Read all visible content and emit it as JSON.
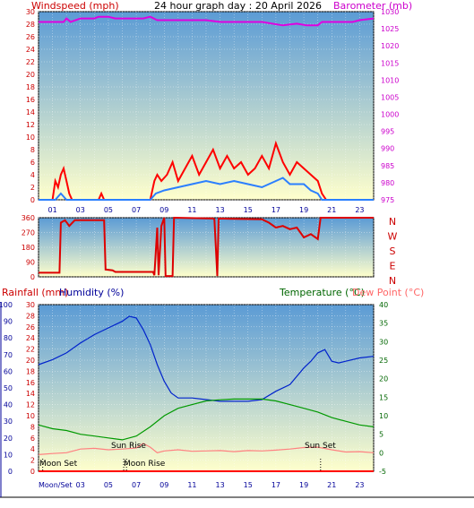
{
  "header": {
    "title": "24 hour graph day : 20 April 2026",
    "left_label": "Windspeed (mph)",
    "right_label": "Barometer (mb)"
  },
  "labels": {
    "rainfall": "Rainfall (mm)",
    "humidity": "Humidity (%)",
    "temperature": "Temperature (°C)",
    "dewpoint": "Dew Point (°C)",
    "sun_rise": "Sun Rise",
    "sun_set": "Sun Set",
    "moon_set": "Moon Set",
    "moon_rise": "Moon Rise",
    "moon_set_axis": "Moon/Set"
  },
  "colors": {
    "wind_axis": "#cc0000",
    "baro_axis": "#cc00cc",
    "baro_line": "#e000e0",
    "gust_line": "#ff0000",
    "wind_line": "#2b7fff",
    "dir_line": "#dd0000",
    "humidity_axis": "#000099",
    "humidity_line": "#0022cc",
    "temp_axis": "#006600",
    "temp_line": "#009900",
    "dew_axis": "#ff6666",
    "dew_line": "#ff8080",
    "rain_axis": "#cc0000",
    "plot_top": "#5b9bd5",
    "plot_bottom": "#ffffcc"
  },
  "chart_data": [
    {
      "type": "line",
      "name": "wind-barometer",
      "x_ticks": [
        "01",
        "03",
        "05",
        "07",
        "09",
        "11",
        "13",
        "15",
        "17",
        "19",
        "21",
        "23"
      ],
      "y_left_ticks": [
        0,
        2,
        4,
        6,
        8,
        10,
        12,
        14,
        16,
        18,
        20,
        22,
        24,
        26,
        28,
        30
      ],
      "y_right_ticks": [
        975,
        980,
        985,
        990,
        995,
        1000,
        1005,
        1010,
        1015,
        1020,
        1025,
        1030
      ],
      "ylim_left": [
        0,
        30
      ],
      "ylim_right": [
        975,
        1030
      ],
      "series": [
        {
          "key": "barometer",
          "points": [
            [
              0,
              1027
            ],
            [
              1.8,
              1027
            ],
            [
              2,
              1028
            ],
            [
              2.3,
              1027
            ],
            [
              3,
              1028
            ],
            [
              4,
              1028
            ],
            [
              4.3,
              1028.5
            ],
            [
              5,
              1028.5
            ],
            [
              5.5,
              1028
            ],
            [
              7.5,
              1028
            ],
            [
              8,
              1028.5
            ],
            [
              8.5,
              1027.5
            ],
            [
              10,
              1027.5
            ],
            [
              12,
              1027.5
            ],
            [
              13,
              1027
            ],
            [
              16,
              1027
            ],
            [
              17.5,
              1026
            ],
            [
              18.5,
              1026.5
            ],
            [
              19.2,
              1026
            ],
            [
              20,
              1026
            ],
            [
              20.3,
              1027
            ],
            [
              22.5,
              1027
            ],
            [
              23,
              1027.5
            ],
            [
              24,
              1028
            ]
          ]
        },
        {
          "key": "gust",
          "points": [
            [
              0,
              0
            ],
            [
              1.0,
              0
            ],
            [
              1.2,
              3
            ],
            [
              1.4,
              2
            ],
            [
              1.6,
              4
            ],
            [
              1.8,
              5
            ],
            [
              2.0,
              3
            ],
            [
              2.2,
              1
            ],
            [
              2.4,
              0
            ],
            [
              4.3,
              0
            ],
            [
              4.5,
              1
            ],
            [
              4.7,
              0
            ],
            [
              8,
              0
            ],
            [
              8.3,
              3
            ],
            [
              8.5,
              4
            ],
            [
              8.8,
              3
            ],
            [
              9.2,
              4
            ],
            [
              9.6,
              6
            ],
            [
              10,
              3
            ],
            [
              10.5,
              5
            ],
            [
              11,
              7
            ],
            [
              11.5,
              4
            ],
            [
              12,
              6
            ],
            [
              12.5,
              8
            ],
            [
              13,
              5
            ],
            [
              13.5,
              7
            ],
            [
              14,
              5
            ],
            [
              14.5,
              6
            ],
            [
              15,
              4
            ],
            [
              15.5,
              5
            ],
            [
              16,
              7
            ],
            [
              16.5,
              5
            ],
            [
              17,
              9
            ],
            [
              17.5,
              6
            ],
            [
              18,
              4
            ],
            [
              18.5,
              6
            ],
            [
              19,
              5
            ],
            [
              19.5,
              4
            ],
            [
              20,
              3
            ],
            [
              20.3,
              1
            ],
            [
              20.6,
              0
            ],
            [
              24,
              0
            ]
          ]
        },
        {
          "key": "wind",
          "points": [
            [
              0,
              0
            ],
            [
              1.2,
              0
            ],
            [
              1.6,
              1
            ],
            [
              2.0,
              0
            ],
            [
              8,
              0
            ],
            [
              8.4,
              1
            ],
            [
              9,
              1.5
            ],
            [
              10,
              2
            ],
            [
              11,
              2.5
            ],
            [
              12,
              3
            ],
            [
              13,
              2.5
            ],
            [
              14,
              3
            ],
            [
              15,
              2.5
            ],
            [
              16,
              2
            ],
            [
              17,
              3
            ],
            [
              17.5,
              3.5
            ],
            [
              18,
              2.5
            ],
            [
              19,
              2.5
            ],
            [
              19.5,
              1.5
            ],
            [
              20,
              1
            ],
            [
              20.3,
              0
            ],
            [
              24,
              0
            ]
          ]
        }
      ]
    },
    {
      "type": "line",
      "name": "wind-direction",
      "y_left_ticks": [
        0,
        90,
        180,
        270,
        360
      ],
      "direction_labels": [
        "N",
        "W",
        "S",
        "E",
        "N"
      ],
      "ylim": [
        0,
        360
      ],
      "series": [
        {
          "key": "direction",
          "points": [
            [
              0,
              25
            ],
            [
              1.5,
              25
            ],
            [
              1.6,
              330
            ],
            [
              1.9,
              345
            ],
            [
              2.2,
              310
            ],
            [
              2.6,
              345
            ],
            [
              4.7,
              345
            ],
            [
              4.8,
              45
            ],
            [
              5.3,
              40
            ],
            [
              5.5,
              30
            ],
            [
              8.2,
              30
            ],
            [
              8.3,
              10
            ],
            [
              8.5,
              300
            ],
            [
              8.6,
              10
            ],
            [
              8.8,
              310
            ],
            [
              9.0,
              360
            ],
            [
              9.1,
              5
            ],
            [
              9.6,
              5
            ],
            [
              9.7,
              360
            ],
            [
              12.5,
              355
            ],
            [
              12.6,
              350
            ],
            [
              12.8,
              5
            ],
            [
              12.9,
              355
            ],
            [
              16,
              350
            ],
            [
              16.5,
              330
            ],
            [
              17,
              300
            ],
            [
              17.5,
              310
            ],
            [
              18,
              290
            ],
            [
              18.5,
              300
            ],
            [
              19,
              240
            ],
            [
              19.5,
              260
            ],
            [
              20,
              230
            ],
            [
              20.2,
              360
            ],
            [
              24,
              360
            ]
          ]
        }
      ]
    },
    {
      "type": "line",
      "name": "temp-humidity-rain",
      "y_humidity_ticks": [
        0,
        10,
        20,
        30,
        40,
        50,
        60,
        70,
        80,
        90,
        100
      ],
      "y_rain_ticks": [
        0,
        2,
        4,
        6,
        8,
        10,
        12,
        14,
        16,
        18,
        20,
        22,
        24,
        26,
        28,
        30
      ],
      "y_temp_ticks": [
        -5,
        0,
        5,
        10,
        15,
        20,
        25,
        30,
        35,
        40
      ],
      "x_ticks": [
        "03",
        "05",
        "07",
        "09",
        "11",
        "13",
        "15",
        "17",
        "19",
        "21",
        "23"
      ],
      "ylim_humidity": [
        0,
        100
      ],
      "ylim_temp": [
        -5,
        40
      ],
      "series": [
        {
          "key": "humidity",
          "points": [
            [
              0,
              64
            ],
            [
              1,
              67
            ],
            [
              2,
              71
            ],
            [
              3,
              77
            ],
            [
              4,
              82
            ],
            [
              5,
              86
            ],
            [
              5.5,
              88
            ],
            [
              6,
              90
            ],
            [
              6.5,
              93
            ],
            [
              7,
              92
            ],
            [
              7.5,
              85
            ],
            [
              8,
              76
            ],
            [
              8.5,
              64
            ],
            [
              9,
              54
            ],
            [
              9.5,
              47
            ],
            [
              10,
              44
            ],
            [
              11,
              44
            ],
            [
              12,
              43
            ],
            [
              13,
              42
            ],
            [
              14,
              42
            ],
            [
              15,
              42
            ],
            [
              16,
              43
            ],
            [
              17,
              48
            ],
            [
              18,
              52
            ],
            [
              18.5,
              57
            ],
            [
              19,
              62
            ],
            [
              19.5,
              66
            ],
            [
              20,
              71
            ],
            [
              20.5,
              73
            ],
            [
              21,
              66
            ],
            [
              21.5,
              65
            ],
            [
              22,
              66
            ],
            [
              23,
              68
            ],
            [
              24,
              69
            ]
          ]
        },
        {
          "key": "temperature",
          "points": [
            [
              0,
              7.5
            ],
            [
              1,
              6.5
            ],
            [
              2,
              6.0
            ],
            [
              3,
              5.0
            ],
            [
              4,
              4.5
            ],
            [
              5,
              4.0
            ],
            [
              6,
              3.5
            ],
            [
              7,
              4.5
            ],
            [
              8,
              7
            ],
            [
              9,
              10
            ],
            [
              10,
              12
            ],
            [
              11,
              13
            ],
            [
              12,
              14
            ],
            [
              13,
              14.3
            ],
            [
              14,
              14.5
            ],
            [
              15,
              14.5
            ],
            [
              16,
              14.5
            ],
            [
              17,
              14
            ],
            [
              18,
              13
            ],
            [
              19,
              12
            ],
            [
              20,
              11
            ],
            [
              21,
              9.5
            ],
            [
              22,
              8.5
            ],
            [
              23,
              7.5
            ],
            [
              24,
              7
            ]
          ]
        },
        {
          "key": "dewpoint",
          "points": [
            [
              0,
              -0.5
            ],
            [
              1,
              -0.2
            ],
            [
              2,
              0
            ],
            [
              3,
              1
            ],
            [
              4,
              1.2
            ],
            [
              5,
              0.8
            ],
            [
              6,
              1.0
            ],
            [
              7,
              1.3
            ],
            [
              7.5,
              2.5
            ],
            [
              8,
              1.5
            ],
            [
              8.5,
              0
            ],
            [
              9,
              0.5
            ],
            [
              10,
              0.8
            ],
            [
              11,
              0.4
            ],
            [
              12,
              0.5
            ],
            [
              13,
              0.6
            ],
            [
              14,
              0.3
            ],
            [
              15,
              0.6
            ],
            [
              16,
              0.5
            ],
            [
              17,
              0.7
            ],
            [
              18,
              1.0
            ],
            [
              19,
              1.4
            ],
            [
              20,
              1.5
            ],
            [
              21,
              0.8
            ],
            [
              22,
              0.2
            ],
            [
              23,
              0.3
            ],
            [
              24,
              0
            ]
          ]
        },
        {
          "key": "rainfall",
          "points": [
            [
              0,
              0
            ],
            [
              24,
              0
            ]
          ]
        }
      ],
      "events": {
        "sun_rise": 6.3,
        "sun_set": 20.2,
        "moon_rise": 6.1,
        "moon_set": 0.3
      }
    }
  ]
}
